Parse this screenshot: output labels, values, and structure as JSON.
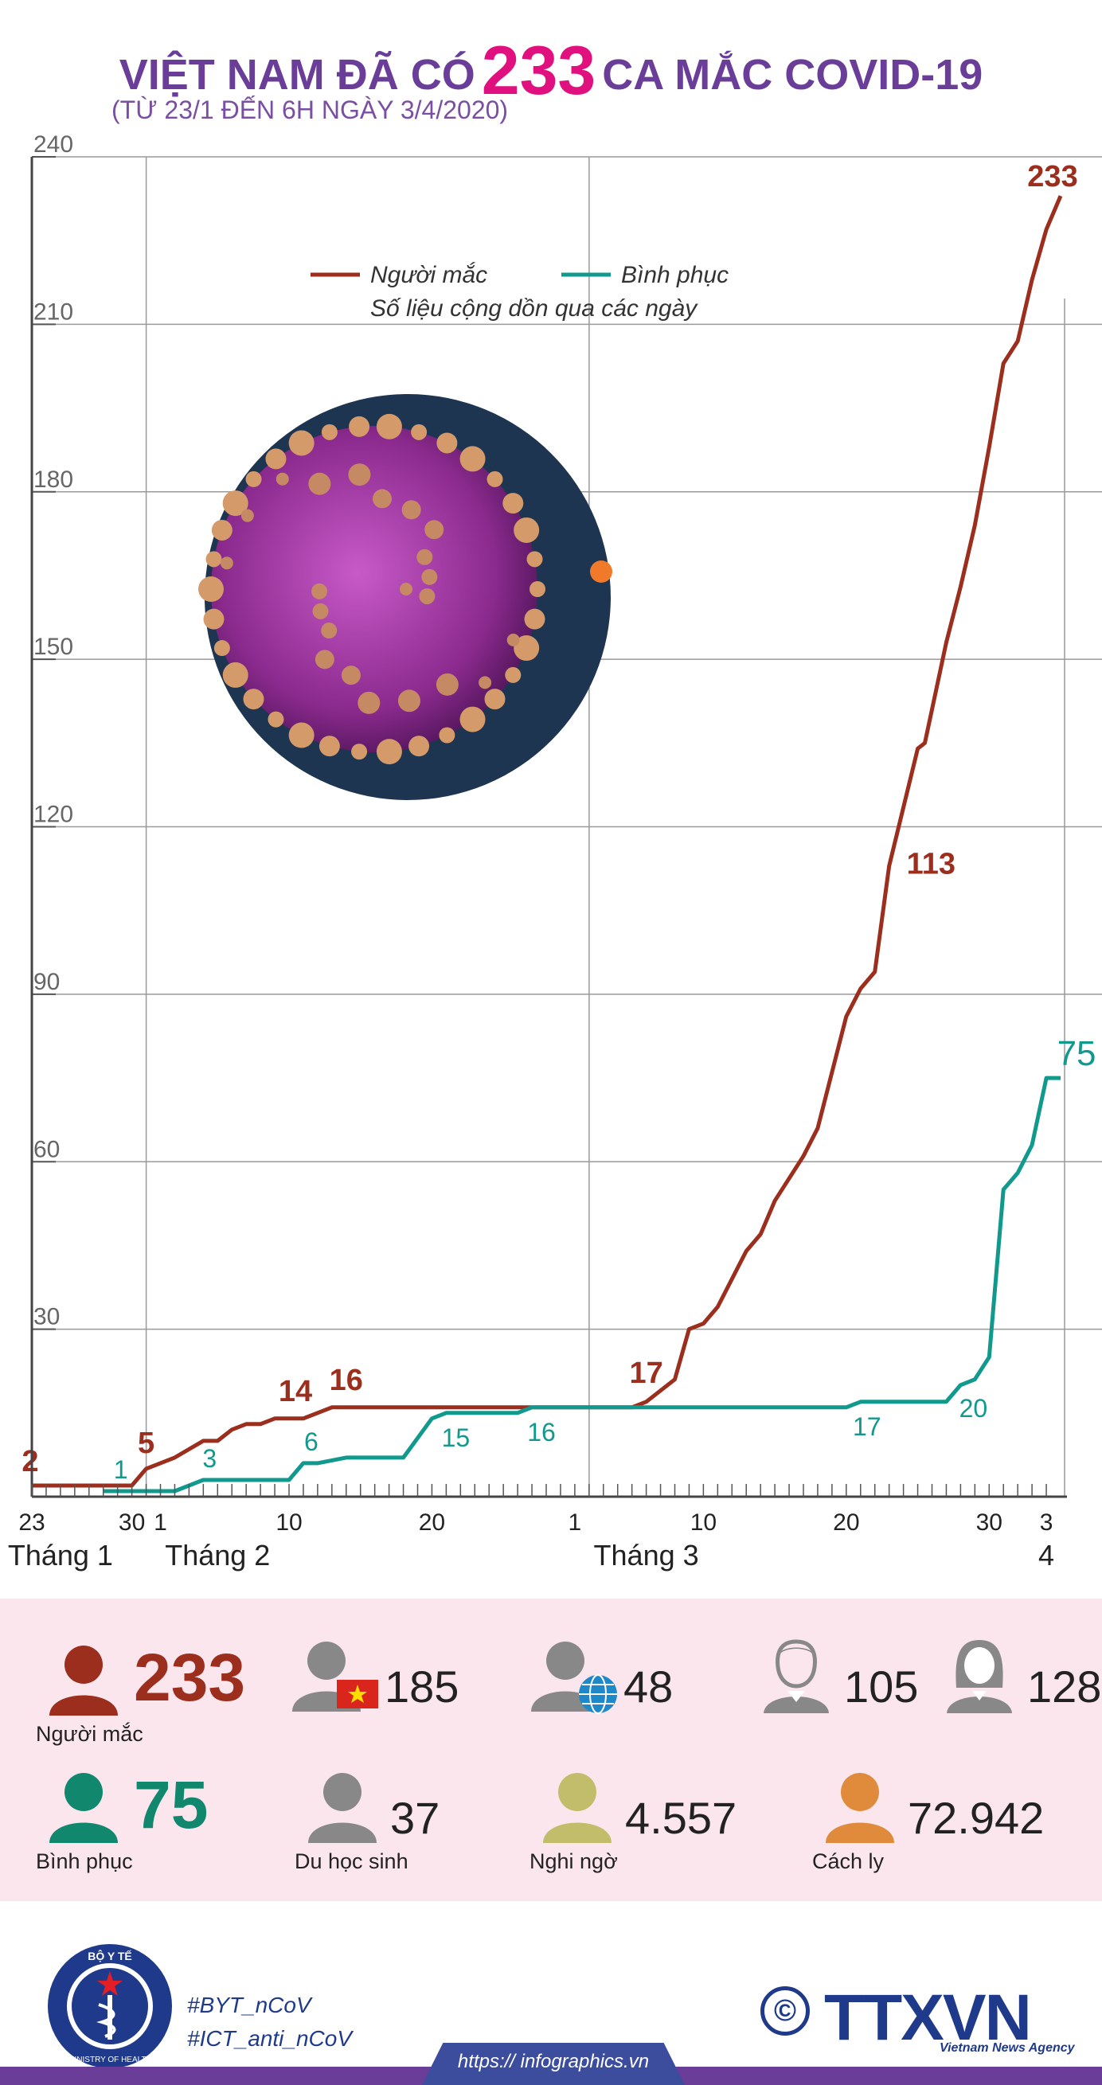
{
  "header": {
    "title_part1": "VIỆT NAM ĐÃ CÓ",
    "title_number": "233",
    "title_part2": "CA MẮC COVID-19",
    "subtitle": "(TỪ 23/1 ĐẾN 6H NGÀY 3/4/2020)"
  },
  "chart_data": {
    "type": "line",
    "legend": {
      "items": [
        "Người mắc",
        "Bình phục"
      ],
      "note": "Số liệu cộng dồn qua các ngày",
      "placement": "top-center"
    },
    "ylim": [
      0,
      240
    ],
    "yticks": [
      30,
      60,
      90,
      120,
      150,
      180,
      210,
      240
    ],
    "x_tick_labels": [
      {
        "label": "23",
        "day": 0
      },
      {
        "label": "30",
        "day": 7
      },
      {
        "label": "1",
        "day": 9
      },
      {
        "label": "10",
        "day": 18
      },
      {
        "label": "20",
        "day": 28
      },
      {
        "label": "1",
        "day": 38
      },
      {
        "label": "10",
        "day": 47
      },
      {
        "label": "20",
        "day": 57
      },
      {
        "label": "30",
        "day": 67
      },
      {
        "label": "3",
        "day": 71
      }
    ],
    "months": [
      {
        "label": "Tháng 1",
        "day": 2
      },
      {
        "label": "Tháng 2",
        "day": 13
      },
      {
        "label": "Tháng 3",
        "day": 43
      },
      {
        "label": "4",
        "day": 71
      }
    ],
    "grid": true,
    "series": [
      {
        "name": "Người mắc",
        "color": "#9c2e1e",
        "points": [
          [
            0,
            2
          ],
          [
            7,
            2
          ],
          [
            8,
            5
          ],
          [
            10,
            7
          ],
          [
            12,
            10
          ],
          [
            13,
            10
          ],
          [
            14,
            12
          ],
          [
            15,
            13
          ],
          [
            16,
            13
          ],
          [
            17,
            14
          ],
          [
            19,
            14
          ],
          [
            20,
            15
          ],
          [
            21,
            16
          ],
          [
            42,
            16
          ],
          [
            43,
            17
          ],
          [
            45,
            21
          ],
          [
            46,
            30
          ],
          [
            47,
            31
          ],
          [
            48,
            34
          ],
          [
            50,
            44
          ],
          [
            51,
            47
          ],
          [
            52,
            53
          ],
          [
            54,
            61
          ],
          [
            55,
            66
          ],
          [
            57,
            86
          ],
          [
            58,
            91
          ],
          [
            59,
            94
          ],
          [
            60,
            113
          ],
          [
            62,
            134
          ],
          [
            62.5,
            135
          ],
          [
            63,
            141
          ],
          [
            64,
            153
          ],
          [
            65,
            163
          ],
          [
            66,
            174
          ],
          [
            67,
            188
          ],
          [
            68,
            203
          ],
          [
            69,
            207
          ],
          [
            70,
            218
          ],
          [
            71,
            227
          ],
          [
            72,
            233
          ]
        ],
        "labels": [
          {
            "text": "2",
            "x": 0,
            "y": 2
          },
          {
            "text": "5",
            "x": 8,
            "y": 5
          },
          {
            "text": "14",
            "x": 18,
            "y": 14
          },
          {
            "text": "16",
            "x": 22,
            "y": 16
          },
          {
            "text": "17",
            "x": 43,
            "y": 17
          },
          {
            "text": "113",
            "x": 60,
            "y": 113
          },
          {
            "text": "233",
            "x": 72,
            "y": 233
          }
        ]
      },
      {
        "name": "Bình phục",
        "color": "#11998e",
        "points": [
          [
            5,
            1
          ],
          [
            10,
            1
          ],
          [
            11,
            2
          ],
          [
            12,
            3
          ],
          [
            17,
            3
          ],
          [
            18,
            3
          ],
          [
            19,
            6
          ],
          [
            20,
            6
          ],
          [
            22,
            7
          ],
          [
            26,
            7
          ],
          [
            28,
            14
          ],
          [
            29,
            15
          ],
          [
            34,
            15
          ],
          [
            35,
            16
          ],
          [
            41,
            16
          ],
          [
            42,
            16
          ],
          [
            53,
            16
          ],
          [
            57,
            16
          ],
          [
            58,
            17
          ],
          [
            64,
            17
          ],
          [
            65,
            20
          ],
          [
            66,
            21
          ],
          [
            67,
            25
          ],
          [
            68,
            55
          ],
          [
            69,
            58
          ],
          [
            70,
            63
          ],
          [
            71,
            75
          ],
          [
            72,
            75
          ]
        ],
        "labels": [
          {
            "text": "1",
            "x": 6,
            "y": 1
          },
          {
            "text": "3",
            "x": 12,
            "y": 3
          },
          {
            "text": "6",
            "x": 19,
            "y": 6
          },
          {
            "text": "15",
            "x": 29,
            "y": 15
          },
          {
            "text": "16",
            "x": 35,
            "y": 16
          },
          {
            "text": "17",
            "x": 58,
            "y": 17
          },
          {
            "text": "20",
            "x": 65,
            "y": 20
          },
          {
            "text": "75",
            "x": 71,
            "y": 75
          }
        ]
      }
    ]
  },
  "stats": [
    {
      "value": "233",
      "caption": "Người mắc",
      "color": "#9c2e1e",
      "icon": "person-icon"
    },
    {
      "value": "185",
      "caption": "",
      "color": "#888888",
      "icon": "person-vietnam-flag-icon"
    },
    {
      "value": "48",
      "caption": "",
      "color": "#888888",
      "icon": "person-globe-icon"
    },
    {
      "value": "105",
      "caption": "",
      "color": "#888888",
      "icon": "male-icon"
    },
    {
      "value": "128",
      "caption": "",
      "color": "#888888",
      "icon": "female-icon"
    },
    {
      "value": "75",
      "caption": "Bình phục",
      "color": "#11876e",
      "icon": "person-icon"
    },
    {
      "value": "37",
      "caption": "Du học sinh",
      "color": "#888888",
      "icon": "person-icon"
    },
    {
      "value": "4.557",
      "caption": "Nghi ngờ",
      "color": "#c2bd6b",
      "icon": "person-icon"
    },
    {
      "value": "72.942",
      "caption": "Cách ly",
      "color": "#e08a3c",
      "icon": "person-icon"
    }
  ],
  "footer": {
    "logo_top": "BỘ Y TẾ",
    "logo_bottom": "MINISTRY OF HEALTH",
    "tags": [
      "#BYT_nCoV",
      "#ICT_anti_nCoV"
    ],
    "copyright": "©",
    "agency": "TTXVN",
    "agency_sub": "Vietnam News Agency",
    "url": "https:// infographics.vn"
  },
  "colors": {
    "title": "#6a3e98",
    "accent": "#e0117f",
    "stats_bg": "#fbe6ee",
    "footer_blue": "#1f3a8a"
  }
}
